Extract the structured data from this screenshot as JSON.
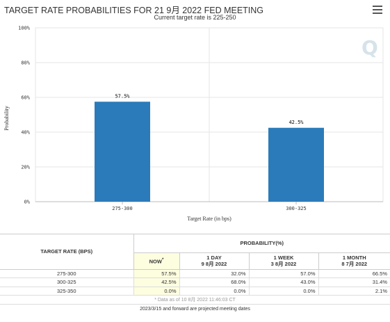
{
  "chart_data": {
    "type": "bar",
    "title": "TARGET RATE PROBABILITIES FOR 21 9月 2022 FED MEETING",
    "subtitle": "Current target rate is 225-250",
    "categories": [
      "275-300",
      "300-325"
    ],
    "values": [
      57.5,
      42.5
    ],
    "data_labels": [
      "57.5%",
      "42.5%"
    ],
    "xlabel": "Target Rate (in bps)",
    "ylabel": "Probability",
    "ylim": [
      0,
      100
    ],
    "yticks": [
      "0%",
      "20%",
      "40%",
      "60%",
      "80%",
      "100%"
    ],
    "grid": true,
    "bar_color": "#2b7bba"
  },
  "table": {
    "rate_header": "TARGET RATE (BPS)",
    "prob_header": "PROBABILITY(%)",
    "columns": [
      {
        "line1": "NOW",
        "line2": "",
        "marker": "*"
      },
      {
        "line1": "1 DAY",
        "line2": "9 8月 2022"
      },
      {
        "line1": "1 WEEK",
        "line2": "3 8月 2022"
      },
      {
        "line1": "1 MONTH",
        "line2": "8 7月 2022"
      }
    ],
    "rows": [
      {
        "rate": "275-300",
        "now": "57.5%",
        "day": "32.0%",
        "week": "57.0%",
        "month": "66.5%"
      },
      {
        "rate": "300-325",
        "now": "42.5%",
        "day": "68.0%",
        "week": "43.0%",
        "month": "31.4%"
      },
      {
        "rate": "325-350",
        "now": "0.0%",
        "day": "0.0%",
        "week": "0.0%",
        "month": "2.1%"
      }
    ],
    "footnote": "* Data as of 10 8月 2022 11:46:03 CT",
    "footer": "2023/3/15 and forward are projected meeting dates"
  },
  "icons": {
    "menu": "hamburger-menu-icon",
    "watermark": "q-logo-watermark-icon"
  }
}
